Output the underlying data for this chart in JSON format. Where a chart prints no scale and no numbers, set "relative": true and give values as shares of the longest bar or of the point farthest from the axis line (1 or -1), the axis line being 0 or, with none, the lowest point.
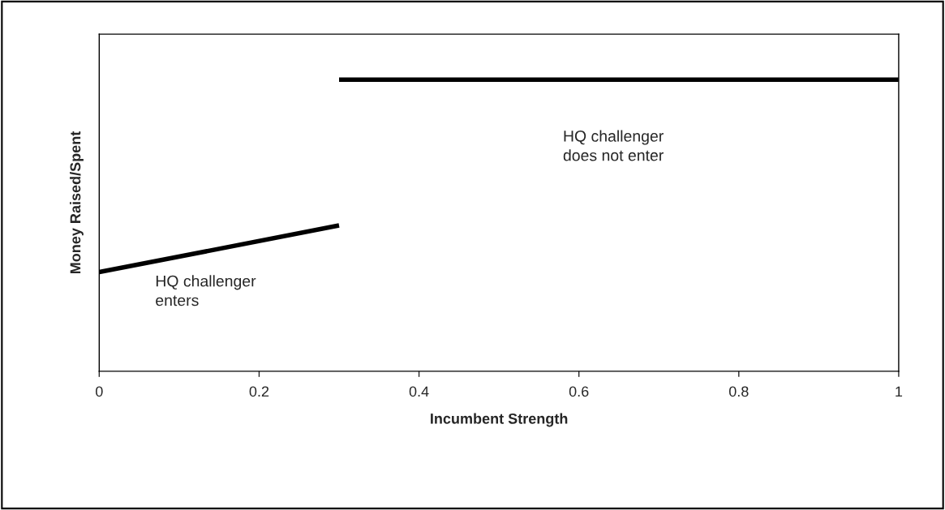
{
  "chart_data": {
    "type": "line",
    "xlabel": "Incumbent Strength",
    "ylabel": "Money Raised/Spent",
    "relative": true,
    "xlim": [
      0,
      1
    ],
    "xticks": [
      0,
      {
        "value": 0.2,
        "label": "0.2"
      },
      {
        "value": 0.4,
        "label": "0.4"
      },
      {
        "value": 0.6,
        "label": "0.6"
      },
      {
        "value": 0.8,
        "label": "0.8"
      },
      1
    ],
    "series": [
      {
        "color": "#000000",
        "x": [
          0,
          0.3
        ],
        "values": [
          0.34,
          0.5
        ]
      },
      {
        "color": "#000000",
        "x": [
          0.3,
          1
        ],
        "values": [
          1,
          1
        ]
      }
    ],
    "annotations": [
      "HQ challenger\nenters",
      "HQ challenger\ndoes not enter"
    ],
    "grid": false,
    "legend": false,
    "tick_labels": "x"
  }
}
